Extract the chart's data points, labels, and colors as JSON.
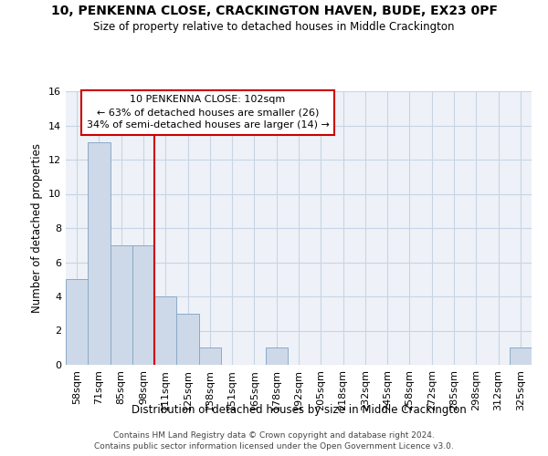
{
  "title_line1": "10, PENKENNA CLOSE, CRACKINGTON HAVEN, BUDE, EX23 0PF",
  "title_line2": "Size of property relative to detached houses in Middle Crackington",
  "xlabel": "Distribution of detached houses by size in Middle Crackington",
  "ylabel": "Number of detached properties",
  "categories": [
    "58sqm",
    "71sqm",
    "85sqm",
    "98sqm",
    "111sqm",
    "125sqm",
    "138sqm",
    "151sqm",
    "165sqm",
    "178sqm",
    "192sqm",
    "205sqm",
    "218sqm",
    "232sqm",
    "245sqm",
    "258sqm",
    "272sqm",
    "285sqm",
    "298sqm",
    "312sqm",
    "325sqm"
  ],
  "values": [
    5,
    13,
    7,
    7,
    4,
    3,
    1,
    0,
    0,
    1,
    0,
    0,
    0,
    0,
    0,
    0,
    0,
    0,
    0,
    0,
    1
  ],
  "bar_color": "#cdd9e8",
  "bar_edge_color": "#8aaac8",
  "ylim": [
    0,
    16
  ],
  "yticks": [
    0,
    2,
    4,
    6,
    8,
    10,
    12,
    14,
    16
  ],
  "annotation_line1": "10 PENKENNA CLOSE: 102sqm",
  "annotation_line2": "← 63% of detached houses are smaller (26)",
  "annotation_line3": "34% of semi-detached houses are larger (14) →",
  "vline_x_index": 3.5,
  "annotation_color": "#cc0000",
  "grid_color": "#c8d4e4",
  "background_color": "#eef2f8",
  "footer_line1": "Contains HM Land Registry data © Crown copyright and database right 2024.",
  "footer_line2": "Contains public sector information licensed under the Open Government Licence v3.0."
}
